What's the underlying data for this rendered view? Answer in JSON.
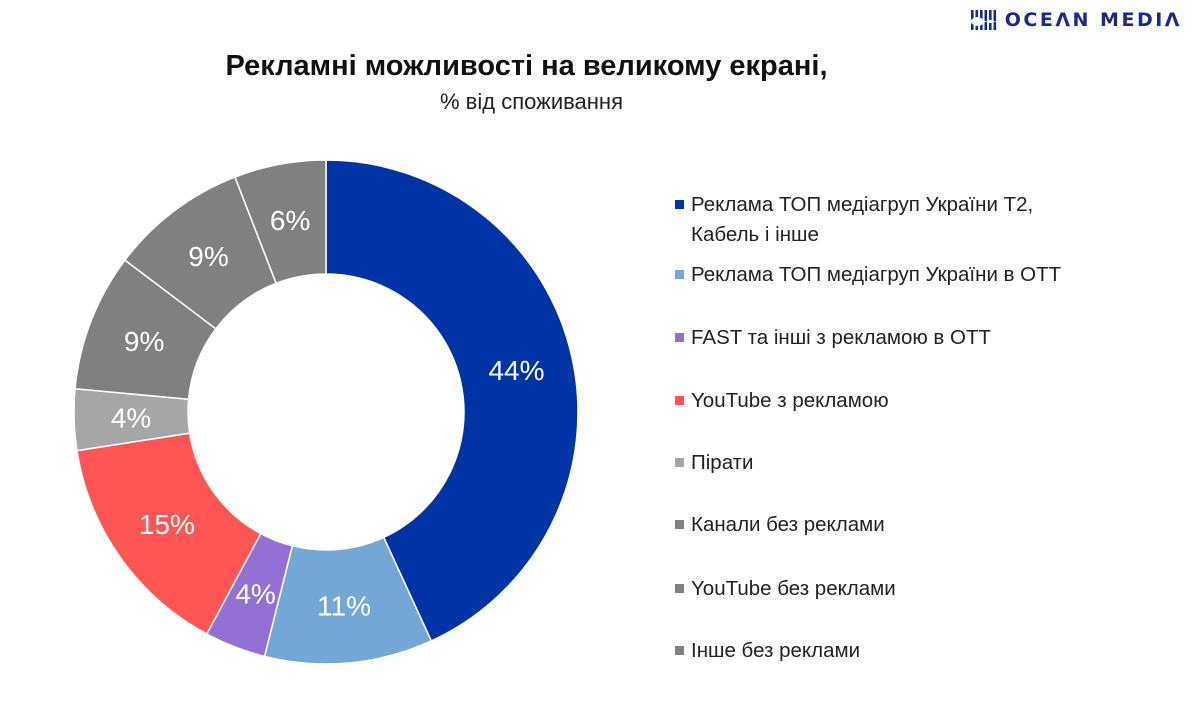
{
  "logo": {
    "text": "OCEΛN MEDIΛ",
    "color": "#1b2a8a"
  },
  "chart_data": {
    "type": "pie",
    "donut": true,
    "title": "Рекламні можливості на великому екрані,",
    "subtitle": "% від споживання",
    "legend_position": "right",
    "slices": [
      {
        "label": "Реклама ТОП медіагруп України Т2, Кабель і інше",
        "value": 44,
        "display": "44%",
        "color": "#0033a6"
      },
      {
        "label": "Реклама ТОП медіагруп України в ОТТ",
        "value": 11,
        "display": "11%",
        "color": "#74a7d6"
      },
      {
        "label": "FAST та інші з рекламою в ОТТ",
        "value": 4,
        "display": "4%",
        "color": "#9370d4"
      },
      {
        "label": "YouTube з рекламою",
        "value": 15,
        "display": "15%",
        "color": "#ff5555"
      },
      {
        "label": "Пірати",
        "value": 4,
        "display": "4%",
        "color": "#a6a6a6"
      },
      {
        "label": "Канали без реклами",
        "value": 9,
        "display": "9%",
        "color": "#808080"
      },
      {
        "label": "YouTube без реклами",
        "value": 9,
        "display": "9%",
        "color": "#808080"
      },
      {
        "label": "Інше без реклами",
        "value": 6,
        "display": "6%",
        "color": "#808080"
      }
    ],
    "legend": [
      {
        "label": "Реклама ТОП медіагруп України Т2,",
        "label_line2": "Кабель і інше",
        "color": "#0033a6"
      },
      {
        "label": "Реклама ТОП медіагруп України в ОТТ",
        "color": "#74a7d6"
      },
      {
        "label": "FAST та інші з рекламою в ОТТ",
        "color": "#9370d4"
      },
      {
        "label": "YouTube з рекламою",
        "color": "#ff5555"
      },
      {
        "label": "Пірати",
        "color": "#a6a6a6"
      },
      {
        "label": "Канали без реклами",
        "color": "#808080"
      },
      {
        "label": "YouTube без реклами",
        "color": "#808080"
      },
      {
        "label": "Інше без реклами",
        "color": "#808080"
      }
    ]
  }
}
